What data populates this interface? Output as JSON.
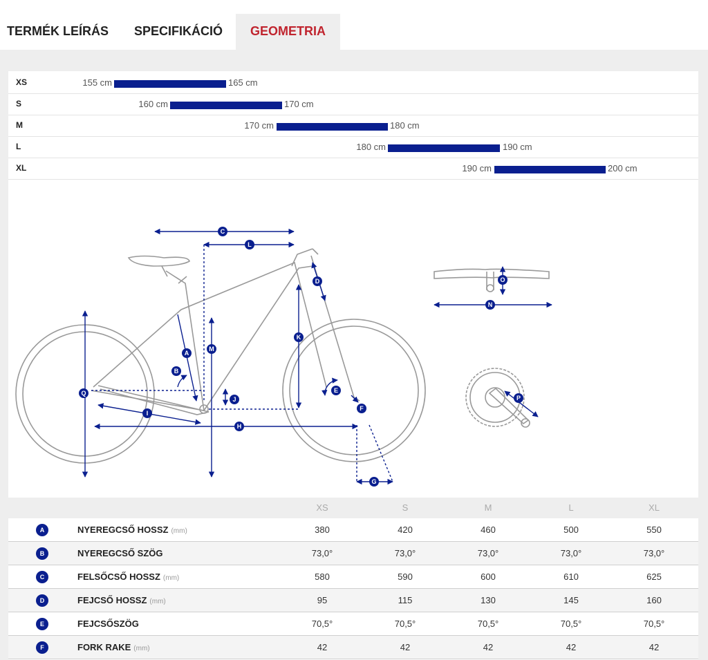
{
  "tabs": [
    {
      "label": "TERMÉK LEÍRÁS"
    },
    {
      "label": "SPECIFIKÁCIÓ"
    },
    {
      "label": "GEOMETRIA"
    }
  ],
  "active_tab": "GEOMETRIA",
  "colors": {
    "accent": "#c0242e",
    "bar": "#0a1f8f",
    "badge": "#0a1f8f"
  },
  "size_chart": {
    "unit": "cm",
    "rows": [
      {
        "size": "XS",
        "min": "155 cm",
        "max": "165 cm"
      },
      {
        "size": "S",
        "min": "160 cm",
        "max": "170 cm"
      },
      {
        "size": "M",
        "min": "170 cm",
        "max": "180 cm"
      },
      {
        "size": "L",
        "min": "180 cm",
        "max": "190 cm"
      },
      {
        "size": "XL",
        "min": "190 cm",
        "max": "200 cm"
      }
    ]
  },
  "diagram": {
    "markers": [
      "A",
      "B",
      "C",
      "D",
      "E",
      "F",
      "G",
      "H",
      "I",
      "J",
      "K",
      "L",
      "M",
      "N",
      "O",
      "P",
      "Q"
    ]
  },
  "geometry": {
    "columns": [
      "XS",
      "S",
      "M",
      "L",
      "XL"
    ],
    "rows": [
      {
        "code": "A",
        "label": "NYEREGCSŐ HOSSZ",
        "unit": "(mm)",
        "values": [
          "380",
          "420",
          "460",
          "500",
          "550"
        ]
      },
      {
        "code": "B",
        "label": "NYEREGCSŐ SZÖG",
        "unit": "",
        "values": [
          "73,0°",
          "73,0°",
          "73,0°",
          "73,0°",
          "73,0°"
        ]
      },
      {
        "code": "C",
        "label": "FELSŐCSŐ HOSSZ",
        "unit": "(mm)",
        "values": [
          "580",
          "590",
          "600",
          "610",
          "625"
        ]
      },
      {
        "code": "D",
        "label": "FEJCSŐ HOSSZ",
        "unit": "(mm)",
        "values": [
          "95",
          "115",
          "130",
          "145",
          "160"
        ]
      },
      {
        "code": "E",
        "label": "FEJCSŐSZÖG",
        "unit": "",
        "values": [
          "70,5°",
          "70,5°",
          "70,5°",
          "70,5°",
          "70,5°"
        ]
      },
      {
        "code": "F",
        "label": "FORK RAKE",
        "unit": "(mm)",
        "values": [
          "42",
          "42",
          "42",
          "42",
          "42"
        ]
      }
    ]
  }
}
